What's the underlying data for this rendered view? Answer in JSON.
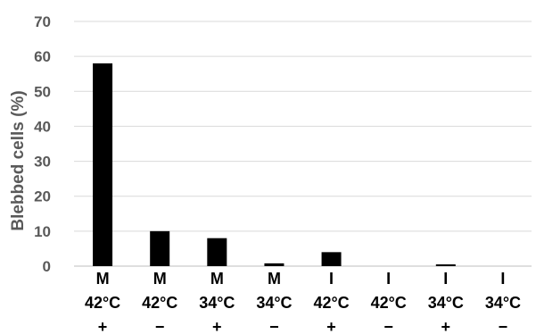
{
  "chart_data": {
    "type": "bar",
    "ylabel": "Blebbed cells (%)",
    "ylim": [
      0,
      70
    ],
    "yticks": [
      0,
      10,
      20,
      30,
      40,
      50,
      60,
      70
    ],
    "grid": true,
    "legend": "none",
    "categories": [
      [
        "M",
        "42°C",
        "+"
      ],
      [
        "M",
        "42°C",
        "−"
      ],
      [
        "M",
        "34°C",
        "+"
      ],
      [
        "M",
        "34°C",
        "−"
      ],
      [
        "I",
        "42°C",
        "+"
      ],
      [
        "I",
        "42°C",
        "−"
      ],
      [
        "I",
        "34°C",
        "+"
      ],
      [
        "I",
        "34°C",
        "−"
      ]
    ],
    "values": [
      58,
      10,
      8,
      0.8,
      4,
      0,
      0.5,
      0
    ],
    "colors": {
      "bar": "#000000",
      "grid": "#d9d9d9",
      "axis": "#bfbfbf",
      "tick_text": "#595959"
    }
  }
}
